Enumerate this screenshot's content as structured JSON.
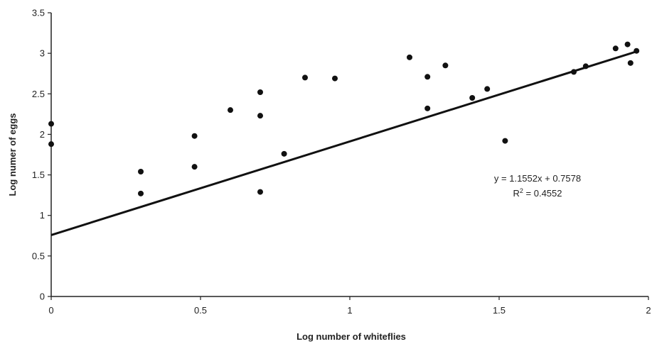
{
  "chart_data": {
    "type": "scatter",
    "xlabel": "Log number of whiteflies",
    "ylabel": "Log numer of eggs",
    "xlim": [
      0,
      2
    ],
    "ylim": [
      0,
      3.5
    ],
    "x_ticks": [
      0,
      0.5,
      1,
      1.5,
      2
    ],
    "x_tick_labels": [
      "0",
      "0.5",
      "1",
      "1.5",
      "2"
    ],
    "y_ticks": [
      0,
      0.5,
      1,
      1.5,
      2,
      2.5,
      3,
      3.5
    ],
    "y_tick_labels": [
      "0",
      "0.5",
      "1",
      "1.5",
      "2",
      "2.5",
      "3",
      "3.5"
    ],
    "grid": false,
    "legend": "none",
    "series": [
      {
        "points": [
          [
            0,
            2.13
          ],
          [
            0,
            1.88
          ],
          [
            0.3,
            1.54
          ],
          [
            0.3,
            1.27
          ],
          [
            0.48,
            1.98
          ],
          [
            0.48,
            1.6
          ],
          [
            0.6,
            2.3
          ],
          [
            0.7,
            2.52
          ],
          [
            0.7,
            2.23
          ],
          [
            0.7,
            1.29
          ],
          [
            0.78,
            1.76
          ],
          [
            0.85,
            2.7
          ],
          [
            0.95,
            2.69
          ],
          [
            1.2,
            2.95
          ],
          [
            1.26,
            2.71
          ],
          [
            1.26,
            2.32
          ],
          [
            1.32,
            2.85
          ],
          [
            1.41,
            2.45
          ],
          [
            1.46,
            2.56
          ],
          [
            1.52,
            1.92
          ],
          [
            1.75,
            2.77
          ],
          [
            1.79,
            2.84
          ],
          [
            1.89,
            3.06
          ],
          [
            1.93,
            3.11
          ],
          [
            1.94,
            2.88
          ],
          [
            1.96,
            3.03
          ]
        ]
      }
    ],
    "trendline": {
      "slope": 1.1552,
      "intercept": 0.7578,
      "x_range": [
        0,
        1.96
      ]
    },
    "annotations": {
      "equation": "y = 1.1552x + 0.7578",
      "r2_prefix": "R",
      "r2_sup": "2",
      "r2_value": " = 0.4552"
    },
    "colors": {
      "points": "#111111",
      "line": "#111111",
      "axis": "#222222"
    }
  }
}
